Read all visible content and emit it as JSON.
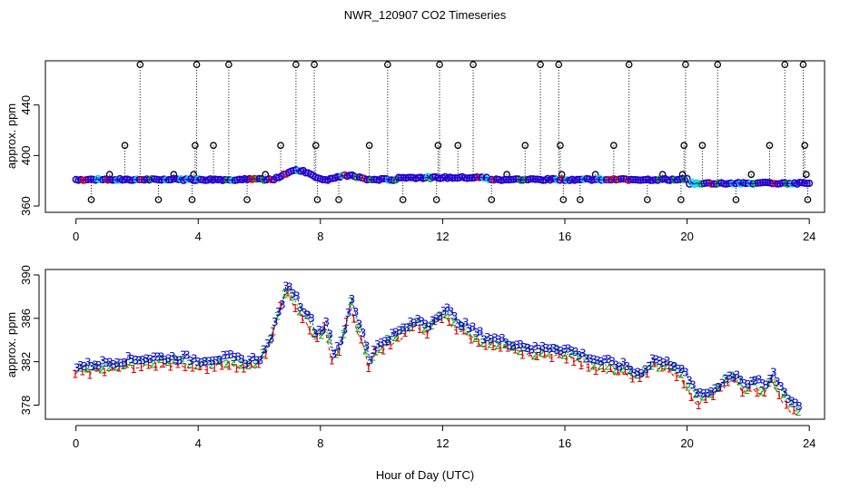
{
  "figure": {
    "title": "NWR_120907  CO2 Timeseries",
    "xlabel": "Hour of Day (UTC)"
  },
  "chart_data": [
    {
      "type": "scatter",
      "panel": "top",
      "xlabel": "Hour of Day (UTC)",
      "ylabel": "approx. ppm",
      "xlim": [
        -1,
        24.5
      ],
      "ylim": [
        355,
        475
      ],
      "x_ticks": [
        "0",
        "4",
        "8",
        "12",
        "16",
        "20",
        "24"
      ],
      "y_ticks": [
        "360",
        "400",
        "440"
      ],
      "outlier_values": [
        365,
        385,
        408,
        472
      ],
      "outliers": [
        {
          "x": 0.5,
          "y": 365
        },
        {
          "x": 1.1,
          "y": 385
        },
        {
          "x": 1.6,
          "y": 408
        },
        {
          "x": 2.1,
          "y": 472
        },
        {
          "x": 2.7,
          "y": 365
        },
        {
          "x": 3.2,
          "y": 385
        },
        {
          "x": 3.8,
          "y": 365
        },
        {
          "x": 3.85,
          "y": 385
        },
        {
          "x": 3.9,
          "y": 408
        },
        {
          "x": 3.95,
          "y": 472
        },
        {
          "x": 4.5,
          "y": 408
        },
        {
          "x": 5.0,
          "y": 472
        },
        {
          "x": 5.6,
          "y": 365
        },
        {
          "x": 6.2,
          "y": 385
        },
        {
          "x": 6.7,
          "y": 408
        },
        {
          "x": 7.2,
          "y": 472
        },
        {
          "x": 7.8,
          "y": 472
        },
        {
          "x": 7.85,
          "y": 408
        },
        {
          "x": 7.9,
          "y": 365
        },
        {
          "x": 8.6,
          "y": 365
        },
        {
          "x": 9.6,
          "y": 408
        },
        {
          "x": 10.2,
          "y": 472
        },
        {
          "x": 10.7,
          "y": 365
        },
        {
          "x": 11.8,
          "y": 365
        },
        {
          "x": 11.85,
          "y": 408
        },
        {
          "x": 11.9,
          "y": 472
        },
        {
          "x": 12.5,
          "y": 408
        },
        {
          "x": 13.0,
          "y": 472
        },
        {
          "x": 13.6,
          "y": 365
        },
        {
          "x": 14.1,
          "y": 385
        },
        {
          "x": 14.7,
          "y": 408
        },
        {
          "x": 15.2,
          "y": 472
        },
        {
          "x": 15.8,
          "y": 472
        },
        {
          "x": 15.85,
          "y": 408
        },
        {
          "x": 15.9,
          "y": 385
        },
        {
          "x": 15.95,
          "y": 365
        },
        {
          "x": 16.5,
          "y": 365
        },
        {
          "x": 17.0,
          "y": 385
        },
        {
          "x": 17.6,
          "y": 408
        },
        {
          "x": 18.1,
          "y": 472
        },
        {
          "x": 18.7,
          "y": 365
        },
        {
          "x": 19.2,
          "y": 385
        },
        {
          "x": 19.8,
          "y": 365
        },
        {
          "x": 19.85,
          "y": 385
        },
        {
          "x": 19.9,
          "y": 408
        },
        {
          "x": 19.95,
          "y": 472
        },
        {
          "x": 20.5,
          "y": 408
        },
        {
          "x": 21.0,
          "y": 472
        },
        {
          "x": 21.6,
          "y": 365
        },
        {
          "x": 22.1,
          "y": 385
        },
        {
          "x": 22.7,
          "y": 408
        },
        {
          "x": 23.2,
          "y": 472
        },
        {
          "x": 23.8,
          "y": 472
        },
        {
          "x": 23.85,
          "y": 408
        },
        {
          "x": 23.9,
          "y": 385
        },
        {
          "x": 23.95,
          "y": 365
        }
      ],
      "series": [
        {
          "name": "main trace",
          "color": "#2200cc"
        },
        {
          "name": "cyan",
          "color": "#00dddd"
        },
        {
          "name": "red",
          "color": "#ee0000"
        },
        {
          "name": "green",
          "color": "#00aa00"
        }
      ]
    },
    {
      "type": "line",
      "panel": "bottom",
      "xlabel": "Hour of Day (UTC)",
      "ylabel": "approx. ppm",
      "xlim": [
        -1,
        24.5
      ],
      "ylim": [
        376.7,
        390.5
      ],
      "x_ticks": [
        "0",
        "4",
        "8",
        "12",
        "16",
        "20",
        "24"
      ],
      "y_ticks": [
        "378",
        "382",
        "386",
        "390"
      ],
      "series": [
        {
          "name": "1",
          "color": "#dd0000",
          "marker": "1"
        },
        {
          "name": "2",
          "color": "#00aa00",
          "marker": "2"
        },
        {
          "name": "3",
          "color": "#0000cc",
          "marker": "3"
        }
      ],
      "x": [
        0.0,
        0.5,
        1.0,
        1.5,
        2.0,
        2.5,
        3.0,
        3.5,
        4.0,
        4.5,
        5.0,
        5.5,
        6.0,
        6.3,
        6.6,
        6.9,
        7.1,
        7.4,
        7.6,
        7.8,
        8.0,
        8.2,
        8.4,
        8.6,
        8.8,
        9.0,
        9.2,
        9.4,
        9.6,
        9.8,
        10.0,
        10.3,
        10.6,
        10.9,
        11.2,
        11.5,
        11.8,
        12.1,
        12.4,
        12.7,
        13.0,
        13.3,
        13.6,
        14.0,
        14.5,
        15.0,
        15.5,
        16.0,
        16.5,
        17.0,
        17.5,
        18.0,
        18.3,
        18.6,
        18.9,
        19.2,
        19.5,
        19.8,
        20.1,
        20.4,
        20.7,
        21.0,
        21.3,
        21.6,
        21.9,
        22.2,
        22.5,
        22.8,
        23.1,
        23.4,
        23.7
      ],
      "values": [
        381.2,
        381.4,
        381.6,
        381.8,
        381.9,
        382.0,
        382.0,
        382.0,
        381.8,
        381.9,
        382.0,
        381.7,
        382.0,
        383.5,
        386.0,
        389.0,
        388.0,
        386.5,
        386.0,
        384.5,
        384.5,
        385.5,
        382.5,
        383.0,
        385.0,
        387.5,
        385.5,
        384.0,
        382.0,
        383.0,
        383.5,
        384.0,
        384.5,
        385.0,
        385.5,
        385.0,
        386.0,
        386.5,
        385.5,
        385.0,
        384.5,
        384.0,
        383.8,
        383.5,
        383.2,
        382.8,
        383.0,
        382.8,
        382.3,
        381.8,
        381.5,
        381.2,
        380.5,
        381.0,
        382.0,
        381.5,
        381.5,
        381.0,
        379.5,
        378.5,
        378.8,
        379.5,
        380.2,
        380.5,
        379.5,
        380.0,
        379.2,
        380.5,
        379.0,
        378.0,
        377.5
      ]
    }
  ]
}
